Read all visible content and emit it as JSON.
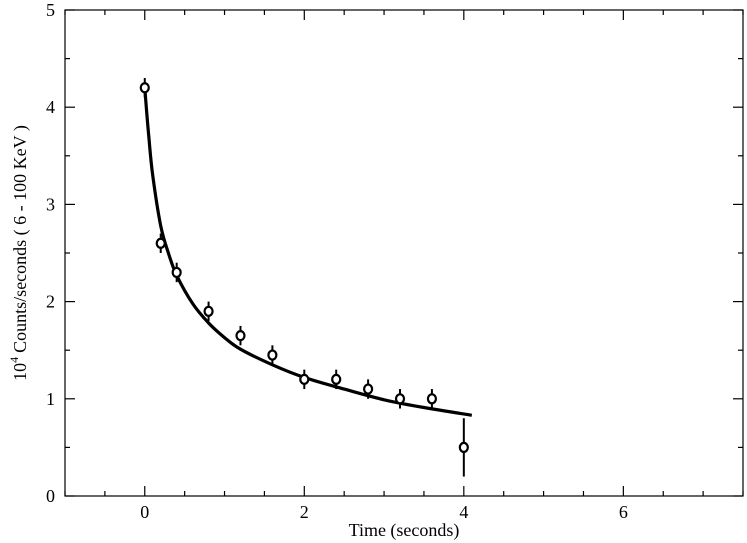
{
  "chart_data": {
    "type": "scatter",
    "title": "",
    "xlabel": "Time (seconds)",
    "ylabel": "Counts/seconds ( 6 - 100 KeV )",
    "ylabel_prefix": "10",
    "ylabel_exponent": "4",
    "xlim": [
      -1,
      7.5
    ],
    "ylim": [
      0,
      5
    ],
    "x_ticks": [
      0,
      2,
      4,
      6
    ],
    "y_ticks": [
      0,
      1,
      2,
      3,
      4,
      5
    ],
    "grid": false,
    "legend": "none",
    "series": [
      {
        "kind": "points_with_error_bars",
        "x": [
          0.0,
          0.2,
          0.4,
          0.8,
          1.2,
          1.6,
          2.0,
          2.4,
          2.8,
          3.2,
          3.6,
          4.0
        ],
        "y": [
          4.2,
          2.6,
          2.3,
          1.9,
          1.65,
          1.45,
          1.2,
          1.2,
          1.1,
          1.0,
          1.0,
          0.5
        ],
        "yerr": [
          0.1,
          0.1,
          0.1,
          0.1,
          0.1,
          0.1,
          0.1,
          0.1,
          0.1,
          0.1,
          0.1,
          0.3
        ]
      },
      {
        "kind": "fit_curve",
        "x": [
          0.0,
          0.05,
          0.1,
          0.2,
          0.3,
          0.4,
          0.6,
          0.8,
          1.0,
          1.2,
          1.6,
          2.0,
          2.5,
          3.0,
          3.5,
          4.1
        ],
        "y": [
          4.2,
          3.7,
          3.3,
          2.78,
          2.49,
          2.27,
          1.98,
          1.78,
          1.63,
          1.51,
          1.35,
          1.22,
          1.1,
          0.99,
          0.91,
          0.83
        ]
      }
    ]
  }
}
